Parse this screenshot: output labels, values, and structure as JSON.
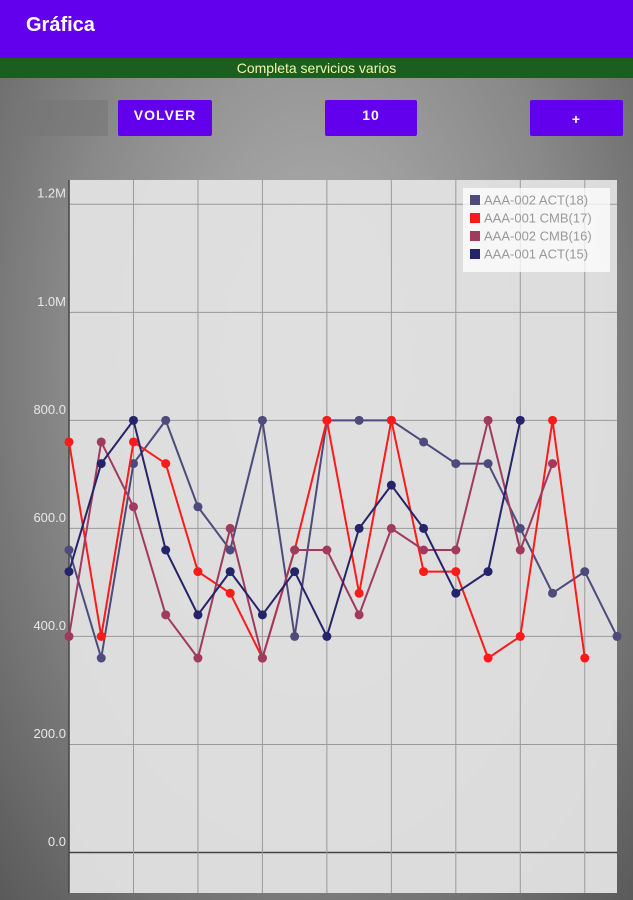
{
  "app_bar": {
    "title": "Gráfica"
  },
  "banner": {
    "text": "Completa servicios  varios"
  },
  "buttons": [
    "VOLVER",
    "10",
    "+"
  ],
  "chart_data": {
    "type": "line",
    "x": [
      0,
      1,
      2,
      3,
      4,
      5,
      6,
      7,
      8,
      9,
      10,
      11,
      12,
      13,
      14,
      15,
      16,
      17
    ],
    "xlim": [
      0,
      17
    ],
    "xticks": [
      0,
      2,
      4,
      6,
      8,
      10,
      12,
      14,
      16
    ],
    "ylim": [
      -75,
      1245
    ],
    "yticks": [
      {
        "value": 0,
        "label": "0.0"
      },
      {
        "value": 200,
        "label": "200.0"
      },
      {
        "value": 400,
        "label": "400.0"
      },
      {
        "value": 600,
        "label": "600.0"
      },
      {
        "value": 800,
        "label": "800.0"
      },
      {
        "value": 1000,
        "label": "1.0M"
      },
      {
        "value": 1200,
        "label": "1.2M"
      }
    ],
    "grid": true,
    "legend": "top-right",
    "series": [
      {
        "name": "AAA-002 ACT(18)",
        "color": "#4d4a7c",
        "values": [
          560,
          360,
          720,
          800,
          640,
          560,
          800,
          400,
          800,
          800,
          800,
          760,
          720,
          720,
          600,
          480,
          520,
          400
        ]
      },
      {
        "name": "AAA-001 CMB(17)",
        "color": "#ff1a1a",
        "values": [
          760,
          400,
          760,
          720,
          520,
          480,
          360,
          560,
          800,
          480,
          800,
          520,
          520,
          360,
          400,
          800,
          360,
          null
        ]
      },
      {
        "name": "AAA-002 CMB(16)",
        "color": "#a03a5e",
        "values": [
          400,
          760,
          640,
          440,
          360,
          600,
          360,
          560,
          560,
          440,
          600,
          560,
          560,
          800,
          560,
          720,
          null,
          null
        ]
      },
      {
        "name": "AAA-001 ACT(15)",
        "color": "#25246b",
        "values": [
          520,
          720,
          800,
          560,
          440,
          520,
          440,
          520,
          400,
          600,
          680,
          600,
          480,
          520,
          800,
          null,
          null,
          null
        ]
      }
    ]
  }
}
